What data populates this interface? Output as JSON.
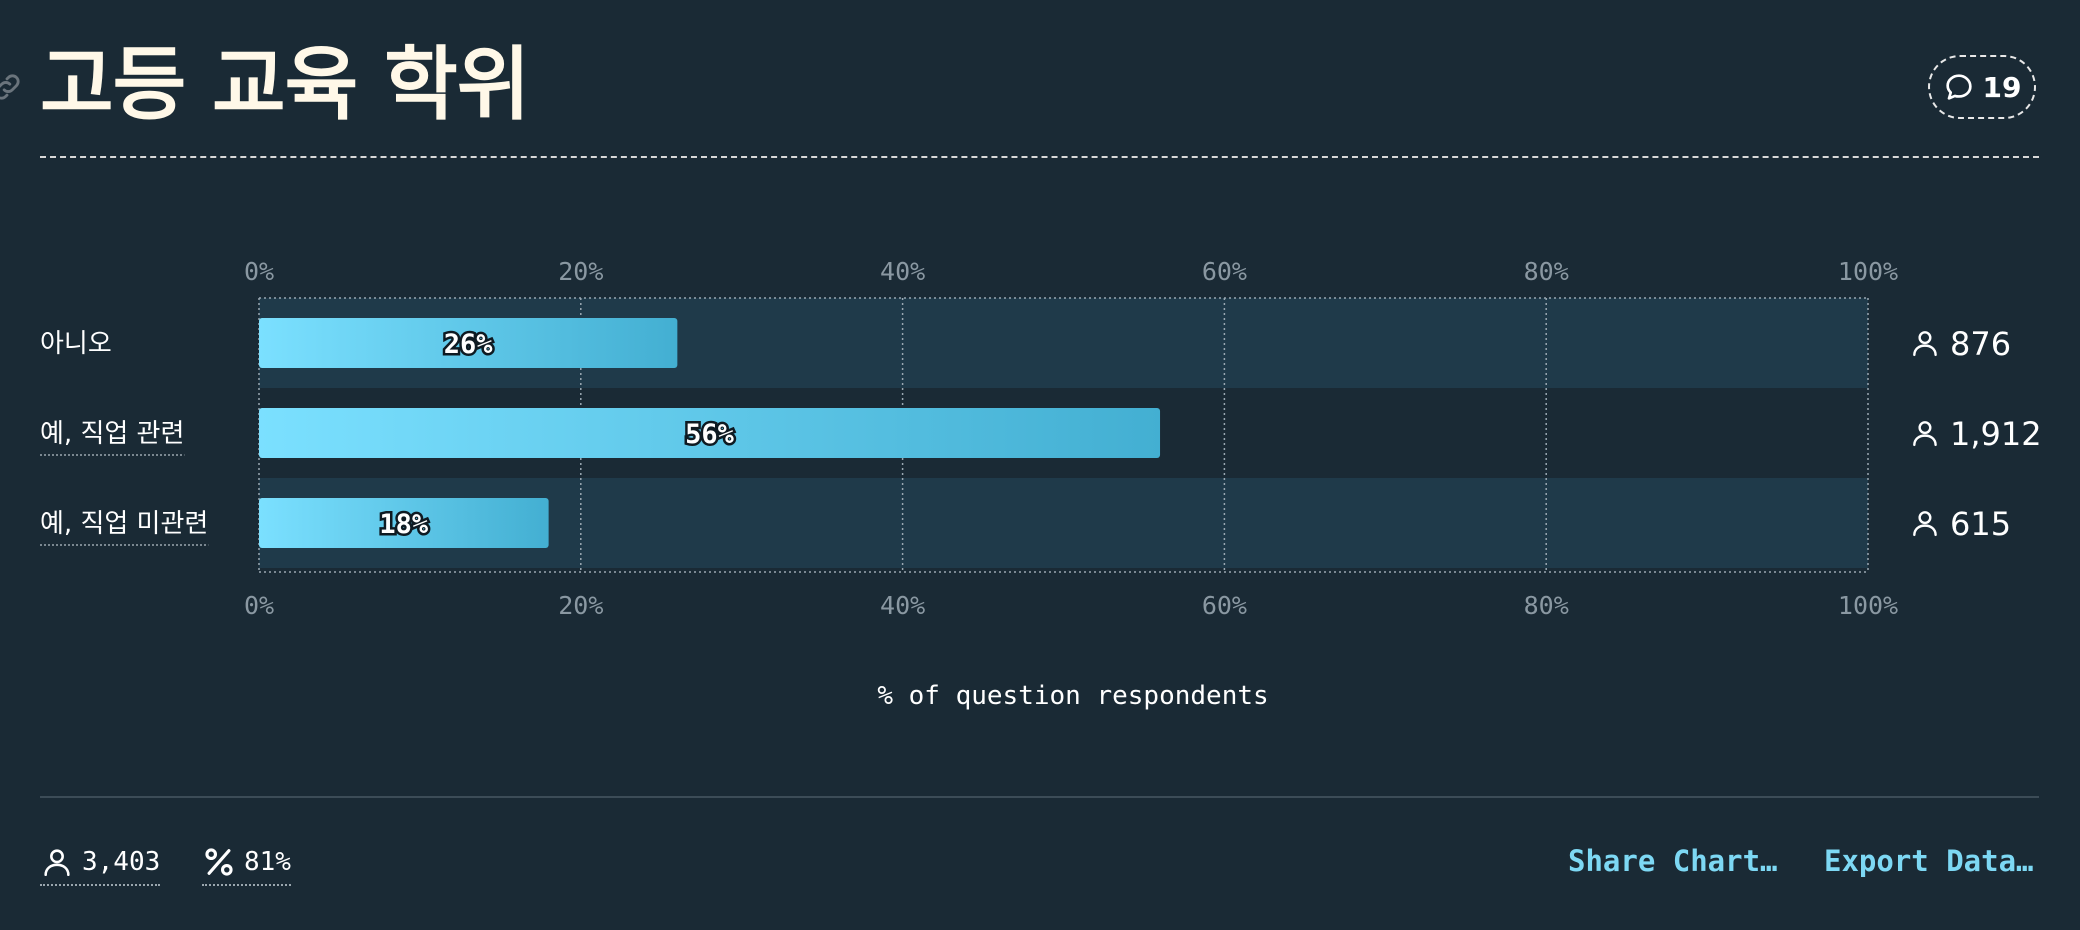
{
  "header": {
    "title": "고등 교육 학위",
    "comment_count": "19"
  },
  "chart_data": {
    "type": "bar",
    "orientation": "horizontal",
    "categories": [
      "아니오",
      "예, 직업 관련",
      "예, 직업 미관련"
    ],
    "values": [
      26,
      56,
      18
    ],
    "value_labels": [
      "26%",
      "56%",
      "18%"
    ],
    "counts": [
      "876",
      "1,912",
      "615"
    ],
    "xlim": [
      0,
      100
    ],
    "ticks": [
      "0%",
      "20%",
      "40%",
      "60%",
      "80%",
      "100%"
    ],
    "xlabel": "% of question respondents",
    "grid": true,
    "colors": {
      "bar_start": "#7be0ff",
      "bar_end": "#43afd2",
      "row_band": "#1f3a4a",
      "grid": "#9aa8b2"
    }
  },
  "footer": {
    "respondents": "3,403",
    "response_rate": "81%",
    "share_label": "Share Chart…",
    "export_label": "Export Data…"
  }
}
